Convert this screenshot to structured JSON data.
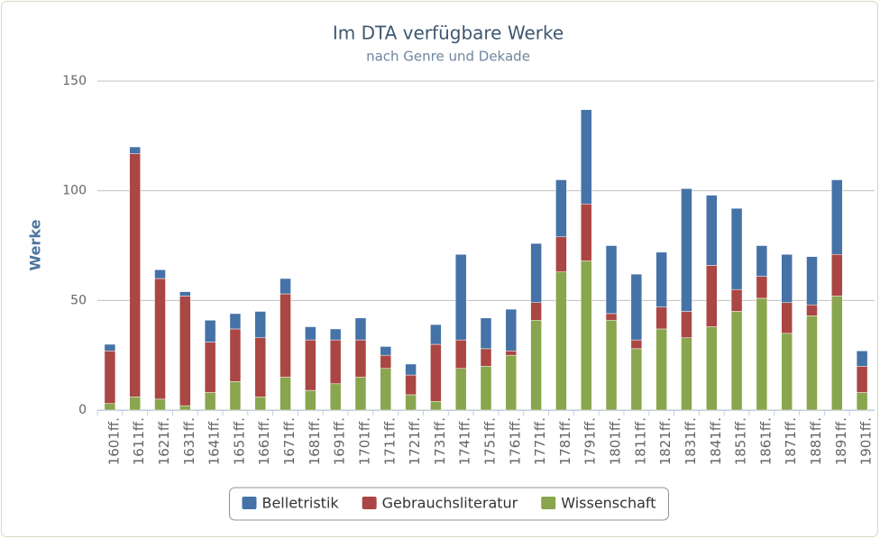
{
  "chart_data": {
    "type": "stacked-bar",
    "title": "Im DTA verfügbare Werke",
    "subtitle": "nach Genre und Dekade",
    "y_label": "Werke",
    "categories": [
      "1601ff.",
      "1611ff.",
      "1621ff.",
      "1631ff.",
      "1641ff.",
      "1651ff.",
      "1661ff.",
      "1671ff.",
      "1681ff.",
      "1691ff.",
      "1701ff.",
      "1711ff.",
      "1721ff.",
      "1731ff.",
      "1741ff.",
      "1751ff.",
      "1761ff.",
      "1771ff.",
      "1781ff.",
      "1791ff.",
      "1801ff.",
      "1811ff.",
      "1821ff.",
      "1831ff.",
      "1841ff.",
      "1851ff.",
      "1861ff.",
      "1871ff.",
      "1881ff.",
      "1891ff.",
      "1901ff."
    ],
    "series": [
      {
        "name": "Belletristik",
        "color": "#4572a7",
        "values": [
          3,
          3,
          4,
          2,
          10,
          7,
          12,
          7,
          6,
          5,
          10,
          4,
          5,
          9,
          39,
          14,
          19,
          27,
          26,
          43,
          31,
          30,
          25,
          56,
          32,
          37,
          14,
          22,
          22,
          34,
          7
        ]
      },
      {
        "name": "Gebrauchsliteratur",
        "color": "#aa4643",
        "values": [
          24,
          111,
          55,
          50,
          23,
          24,
          27,
          38,
          23,
          20,
          17,
          6,
          9,
          26,
          13,
          8,
          2,
          8,
          16,
          26,
          3,
          4,
          10,
          12,
          28,
          10,
          10,
          14,
          5,
          19,
          12
        ]
      },
      {
        "name": "Wissenschaft",
        "color": "#89a54e",
        "values": [
          3,
          6,
          5,
          2,
          8,
          13,
          6,
          15,
          9,
          12,
          15,
          19,
          7,
          4,
          19,
          20,
          25,
          41,
          63,
          68,
          41,
          28,
          37,
          33,
          38,
          45,
          51,
          35,
          43,
          52,
          8
        ]
      }
    ],
    "ylim": [
      0,
      150
    ],
    "yticks": [
      0,
      50,
      100,
      150
    ],
    "grid": true
  }
}
